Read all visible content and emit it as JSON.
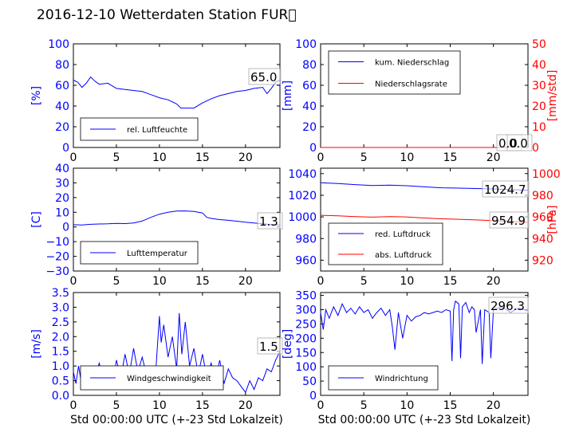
{
  "title": "2016-12-10 Wetterdaten Station FUR\u0000",
  "xlabel": "Std 00:00:00 UTC (+-23 Std Lokalzeit)",
  "colors": {
    "blue": "#0000ff",
    "red": "#ff0000",
    "black": "#000000"
  },
  "chart_data": [
    {
      "type": "line",
      "panel": "top-left",
      "xlim": [
        0,
        24
      ],
      "x_ticks": [
        "0",
        "5",
        "10",
        "15",
        "20"
      ],
      "ylabel": "[%]",
      "ylim": [
        0,
        100
      ],
      "y_ticks": [
        "0",
        "20",
        "40",
        "60",
        "80",
        "100"
      ],
      "legend": {
        "placement": "lower-left"
      },
      "annotation": "65.0",
      "series": [
        {
          "name": "rel. Luftfeuchte",
          "color": "#0000ff",
          "x": [
            0,
            0.5,
            1,
            1.5,
            2,
            2.5,
            3,
            4,
            5,
            6,
            7,
            8,
            9,
            10,
            11,
            12,
            12.5,
            13,
            14,
            15,
            16,
            17,
            18,
            19,
            20,
            21,
            22,
            22.5,
            23,
            23.5,
            24
          ],
          "y": [
            65,
            63,
            58,
            62,
            68,
            64,
            61,
            62,
            57,
            56,
            55,
            54,
            51,
            48,
            46,
            42,
            38,
            38,
            38,
            43,
            47,
            50,
            52,
            54,
            55,
            57,
            58,
            52,
            57,
            63,
            65
          ]
        }
      ]
    },
    {
      "type": "line",
      "panel": "top-right",
      "xlim": [
        0,
        24
      ],
      "x_ticks": [
        "0",
        "5",
        "10",
        "15",
        "20"
      ],
      "ylabel": "[mm]",
      "ylim": [
        0,
        100
      ],
      "y_ticks": [
        "0",
        "20",
        "40",
        "60",
        "80",
        "100"
      ],
      "ylabel_right": "[mm/std]",
      "ylim_right": [
        0,
        50
      ],
      "y_ticks_right": [
        "0",
        "10",
        "20",
        "30",
        "40",
        "50"
      ],
      "legend": {
        "placement": "upper-left"
      },
      "annotations": [
        "0.0",
        "0.0"
      ],
      "series": [
        {
          "name": "kum. Niederschlag",
          "color": "#0000ff",
          "axis": "left",
          "x": [
            0,
            24
          ],
          "y": [
            0,
            0
          ]
        },
        {
          "name": "Niederschlagsrate",
          "color": "#ff0000",
          "axis": "right",
          "x": [
            0,
            24
          ],
          "y": [
            0,
            0
          ]
        }
      ]
    },
    {
      "type": "line",
      "panel": "middle-left",
      "xlim": [
        0,
        24
      ],
      "x_ticks": [
        "0",
        "5",
        "10",
        "15",
        "20"
      ],
      "ylabel": "[C]",
      "ylim": [
        -30,
        40
      ],
      "y_ticks": [
        "−30",
        "−20",
        "−10",
        "0",
        "10",
        "20",
        "30",
        "40"
      ],
      "legend": {
        "placement": "lower-left"
      },
      "annotation": "1.3",
      "series": [
        {
          "name": "Lufttemperatur",
          "color": "#0000ff",
          "x": [
            0,
            1,
            2,
            3,
            4,
            5,
            6,
            7,
            8,
            9,
            10,
            11,
            12,
            13,
            14,
            15,
            15.5,
            16,
            17,
            18,
            19,
            20,
            21,
            22,
            23,
            24
          ],
          "y": [
            1.5,
            1.3,
            1.8,
            2.0,
            2.1,
            2.4,
            2.3,
            2.7,
            4.0,
            6.5,
            8.7,
            10.0,
            10.8,
            10.9,
            10.6,
            9.5,
            6.5,
            5.8,
            5.0,
            4.5,
            3.9,
            3.2,
            2.7,
            2.1,
            1.6,
            1.3
          ]
        }
      ]
    },
    {
      "type": "line",
      "panel": "middle-right",
      "xlim": [
        0,
        24
      ],
      "x_ticks": [
        "0",
        "5",
        "10",
        "15",
        "20"
      ],
      "ylim": [
        950,
        1045
      ],
      "y_ticks": [
        "960",
        "980",
        "1000",
        "1020",
        "1040"
      ],
      "ylabel_right": "[hPa]",
      "ylim_right": [
        910,
        1005
      ],
      "y_ticks_right": [
        "920",
        "940",
        "960",
        "980",
        "1000"
      ],
      "legend": {
        "placement": "lower-left"
      },
      "annotations": [
        "1024.7",
        "954.9"
      ],
      "series": [
        {
          "name": "red. Luftdruck",
          "color": "#0000ff",
          "axis": "left",
          "x": [
            0,
            2,
            4,
            6,
            8,
            10,
            12,
            14,
            16,
            18,
            20,
            22,
            24
          ],
          "y": [
            1031.5,
            1030.8,
            1029.8,
            1029.0,
            1029.4,
            1028.8,
            1027.8,
            1026.9,
            1026.6,
            1026.2,
            1025.8,
            1025.3,
            1024.7
          ]
        },
        {
          "name": "abs. Luftdruck",
          "color": "#ff0000",
          "axis": "right",
          "x": [
            0,
            2,
            4,
            6,
            8,
            10,
            12,
            14,
            16,
            18,
            20,
            22,
            24
          ],
          "y": [
            961.5,
            961.0,
            960.3,
            959.8,
            960.2,
            959.9,
            959.0,
            958.2,
            957.8,
            957.2,
            956.6,
            955.8,
            954.9
          ]
        }
      ]
    },
    {
      "type": "line",
      "panel": "bottom-left",
      "xlim": [
        0,
        24
      ],
      "x_ticks": [
        "0",
        "5",
        "10",
        "15",
        "20"
      ],
      "xlabel": "Std 00:00:00 UTC (+-23 Std Lokalzeit)",
      "ylabel": "[m/s]",
      "ylim": [
        0,
        3.5
      ],
      "y_ticks": [
        "0.0",
        "0.5",
        "1.0",
        "1.5",
        "2.0",
        "2.5",
        "3.0",
        "3.5"
      ],
      "legend": {
        "placement": "lower-center"
      },
      "annotation": "1.5",
      "series": [
        {
          "name": "Windgeschwindigkeit",
          "color": "#0000ff",
          "x": [
            0,
            0.3,
            0.6,
            1,
            1.3,
            1.6,
            2,
            2.5,
            3,
            3.5,
            4,
            4.5,
            5,
            5.5,
            6,
            6.5,
            7,
            7.5,
            8,
            8.5,
            9,
            9.5,
            10,
            10.2,
            10.5,
            11,
            11.5,
            12,
            12.3,
            12.6,
            13,
            13.5,
            14,
            14.5,
            15,
            15.5,
            16,
            16.5,
            17,
            17.5,
            18,
            18.5,
            19,
            19.5,
            20,
            20.5,
            21,
            21.5,
            22,
            22.5,
            23,
            23.5,
            24
          ],
          "y": [
            0.8,
            0.4,
            1.0,
            0.3,
            0.9,
            0.5,
            0.7,
            0.6,
            1.1,
            0.5,
            0.9,
            0.3,
            1.2,
            0.6,
            1.4,
            0.7,
            1.6,
            0.8,
            1.3,
            0.7,
            0.9,
            0.5,
            2.7,
            1.8,
            2.4,
            1.3,
            2.0,
            0.9,
            2.8,
            1.4,
            2.5,
            1.0,
            1.6,
            0.7,
            1.4,
            0.6,
            1.1,
            0.5,
            1.2,
            0.4,
            0.9,
            0.6,
            0.5,
            0.3,
            0.1,
            0.5,
            0.2,
            0.6,
            0.5,
            0.9,
            0.8,
            1.2,
            1.5
          ]
        }
      ]
    },
    {
      "type": "line",
      "panel": "bottom-right",
      "xlim": [
        0,
        24
      ],
      "x_ticks": [
        "0",
        "5",
        "10",
        "15",
        "20"
      ],
      "xlabel": "Std 00:00:00 UTC (+-23 Std Lokalzeit)",
      "ylabel": "[deg]",
      "ylim": [
        0,
        360
      ],
      "y_ticks": [
        "0",
        "50",
        "100",
        "150",
        "200",
        "250",
        "300",
        "350"
      ],
      "legend": {
        "placement": "lower-left"
      },
      "annotation": "296.3",
      "series": [
        {
          "name": "Windrichtung",
          "color": "#0000ff",
          "x": [
            0,
            0.3,
            0.6,
            1,
            1.5,
            2,
            2.5,
            3,
            3.5,
            4,
            4.5,
            5,
            5.5,
            6,
            6.5,
            7,
            7.5,
            8,
            8.3,
            8.6,
            9,
            9.5,
            10,
            10.5,
            11,
            11.5,
            12,
            12.5,
            13,
            13.5,
            14,
            14.5,
            15,
            15.2,
            15.4,
            15.6,
            16,
            16.2,
            16.4,
            16.8,
            17.2,
            17.5,
            17.8,
            18,
            18.5,
            18.7,
            19,
            19.5,
            19.7,
            20,
            20.5,
            21,
            21.5,
            22,
            22.5,
            23,
            23.5,
            24
          ],
          "y": [
            290,
            230,
            300,
            270,
            310,
            280,
            320,
            290,
            305,
            285,
            310,
            290,
            300,
            270,
            290,
            305,
            280,
            300,
            240,
            160,
            290,
            200,
            280,
            260,
            275,
            280,
            290,
            285,
            290,
            295,
            290,
            300,
            295,
            120,
            300,
            330,
            320,
            130,
            310,
            325,
            290,
            310,
            300,
            220,
            300,
            110,
            300,
            290,
            130,
            300,
            305,
            310,
            300,
            290,
            300,
            305,
            300,
            296
          ]
        }
      ]
    }
  ]
}
